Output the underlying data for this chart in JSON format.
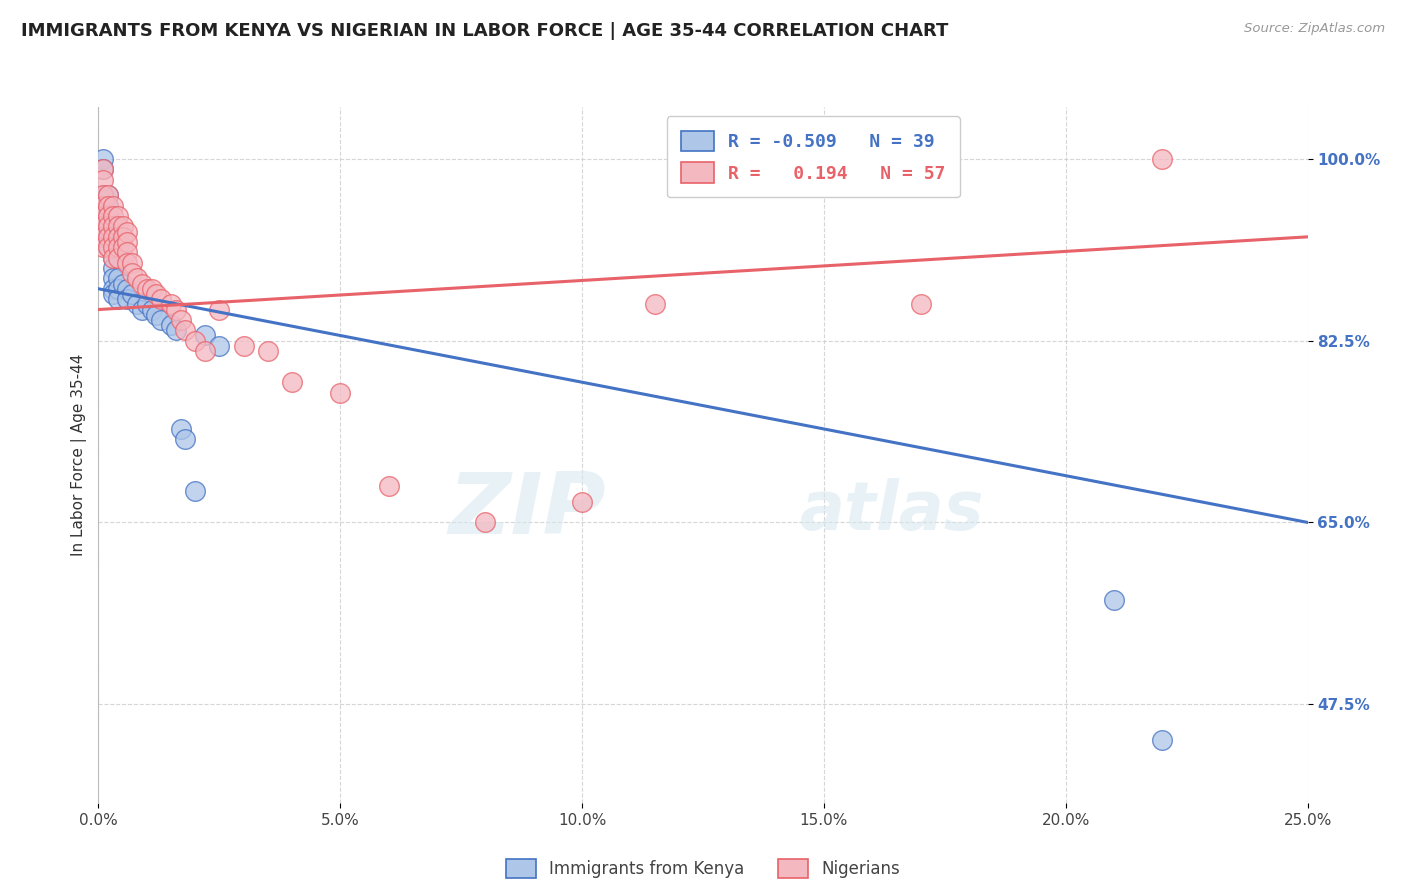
{
  "title": "IMMIGRANTS FROM KENYA VS NIGERIAN IN LABOR FORCE | AGE 35-44 CORRELATION CHART",
  "source": "Source: ZipAtlas.com",
  "xlabel_ticks": [
    "0.0%",
    "5.0%",
    "10.0%",
    "15.0%",
    "20.0%",
    "25.0%"
  ],
  "xlabel_vals": [
    0.0,
    0.05,
    0.1,
    0.15,
    0.2,
    0.25
  ],
  "ylabel_ticks": [
    "47.5%",
    "65.0%",
    "82.5%",
    "100.0%"
  ],
  "ylabel_vals": [
    0.475,
    0.65,
    0.825,
    1.0
  ],
  "xlim": [
    0.0,
    0.25
  ],
  "ylim": [
    0.38,
    1.05
  ],
  "ylabel": "In Labor Force | Age 35-44",
  "legend_entries": [
    {
      "label": "Immigrants from Kenya",
      "color": "#aec6e8",
      "R": "-0.509",
      "N": "39"
    },
    {
      "label": "Nigerians",
      "color": "#f4b8c1",
      "R": "  0.194",
      "N": "57"
    }
  ],
  "kenya_scatter": [
    [
      0.001,
      1.0
    ],
    [
      0.001,
      0.99
    ],
    [
      0.001,
      0.965
    ],
    [
      0.001,
      0.955
    ],
    [
      0.001,
      0.945
    ],
    [
      0.001,
      0.935
    ],
    [
      0.002,
      0.965
    ],
    [
      0.002,
      0.955
    ],
    [
      0.002,
      0.945
    ],
    [
      0.002,
      0.935
    ],
    [
      0.002,
      0.925
    ],
    [
      0.002,
      0.915
    ],
    [
      0.003,
      0.905
    ],
    [
      0.003,
      0.895
    ],
    [
      0.003,
      0.885
    ],
    [
      0.003,
      0.875
    ],
    [
      0.003,
      0.87
    ],
    [
      0.004,
      0.885
    ],
    [
      0.004,
      0.875
    ],
    [
      0.004,
      0.865
    ],
    [
      0.005,
      0.88
    ],
    [
      0.006,
      0.875
    ],
    [
      0.006,
      0.865
    ],
    [
      0.007,
      0.87
    ],
    [
      0.008,
      0.86
    ],
    [
      0.009,
      0.855
    ],
    [
      0.01,
      0.86
    ],
    [
      0.011,
      0.855
    ],
    [
      0.012,
      0.85
    ],
    [
      0.013,
      0.845
    ],
    [
      0.015,
      0.84
    ],
    [
      0.016,
      0.835
    ],
    [
      0.017,
      0.74
    ],
    [
      0.018,
      0.73
    ],
    [
      0.02,
      0.68
    ],
    [
      0.022,
      0.83
    ],
    [
      0.025,
      0.82
    ],
    [
      0.21,
      0.575
    ],
    [
      0.22,
      0.44
    ]
  ],
  "nigeria_scatter": [
    [
      0.001,
      0.99
    ],
    [
      0.001,
      0.98
    ],
    [
      0.001,
      0.965
    ],
    [
      0.001,
      0.955
    ],
    [
      0.001,
      0.945
    ],
    [
      0.001,
      0.935
    ],
    [
      0.001,
      0.925
    ],
    [
      0.001,
      0.915
    ],
    [
      0.002,
      0.965
    ],
    [
      0.002,
      0.955
    ],
    [
      0.002,
      0.945
    ],
    [
      0.002,
      0.935
    ],
    [
      0.002,
      0.925
    ],
    [
      0.002,
      0.915
    ],
    [
      0.003,
      0.955
    ],
    [
      0.003,
      0.945
    ],
    [
      0.003,
      0.935
    ],
    [
      0.003,
      0.925
    ],
    [
      0.003,
      0.915
    ],
    [
      0.003,
      0.905
    ],
    [
      0.004,
      0.945
    ],
    [
      0.004,
      0.935
    ],
    [
      0.004,
      0.925
    ],
    [
      0.004,
      0.915
    ],
    [
      0.004,
      0.905
    ],
    [
      0.005,
      0.935
    ],
    [
      0.005,
      0.925
    ],
    [
      0.005,
      0.915
    ],
    [
      0.006,
      0.93
    ],
    [
      0.006,
      0.92
    ],
    [
      0.006,
      0.91
    ],
    [
      0.006,
      0.9
    ],
    [
      0.007,
      0.9
    ],
    [
      0.007,
      0.89
    ],
    [
      0.008,
      0.885
    ],
    [
      0.009,
      0.88
    ],
    [
      0.01,
      0.875
    ],
    [
      0.011,
      0.875
    ],
    [
      0.012,
      0.87
    ],
    [
      0.013,
      0.865
    ],
    [
      0.015,
      0.86
    ],
    [
      0.016,
      0.855
    ],
    [
      0.017,
      0.845
    ],
    [
      0.018,
      0.835
    ],
    [
      0.02,
      0.825
    ],
    [
      0.022,
      0.815
    ],
    [
      0.025,
      0.855
    ],
    [
      0.03,
      0.82
    ],
    [
      0.035,
      0.815
    ],
    [
      0.04,
      0.785
    ],
    [
      0.05,
      0.775
    ],
    [
      0.06,
      0.685
    ],
    [
      0.08,
      0.65
    ],
    [
      0.1,
      0.67
    ],
    [
      0.115,
      0.86
    ],
    [
      0.17,
      0.86
    ],
    [
      0.22,
      1.0
    ]
  ],
  "kenya_line_x0": 0.0,
  "kenya_line_y0": 0.875,
  "kenya_line_x1": 0.25,
  "kenya_line_y1": 0.65,
  "nigeria_line_x0": 0.0,
  "nigeria_line_y0": 0.855,
  "nigeria_line_x1": 0.25,
  "nigeria_line_y1": 0.925,
  "kenya_line_color": "#4472c4",
  "nigeria_line_color": "#e8626a",
  "kenya_dot_color": "#aec6e8",
  "nigeria_dot_color": "#f4b8c1",
  "watermark_zip": "ZIP",
  "watermark_atlas": "atlas",
  "background_color": "#ffffff",
  "grid_color": "#cccccc"
}
